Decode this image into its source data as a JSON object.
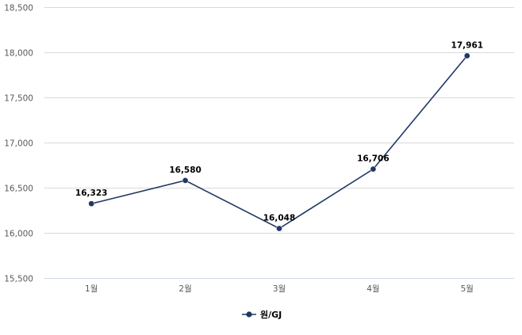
{
  "chart_data": {
    "type": "line",
    "categories": [
      "1월",
      "2월",
      "3월",
      "4월",
      "5월"
    ],
    "series": [
      {
        "name": "원/GJ",
        "values": [
          16323,
          16580,
          16048,
          16706,
          17961
        ],
        "labels": [
          "16,323",
          "16,580",
          "16,048",
          "16,706",
          "17,961"
        ],
        "color": "#1f3864"
      }
    ],
    "ylim": [
      15500,
      18500
    ],
    "yticks": [
      15500,
      16000,
      16500,
      17000,
      17500,
      18000,
      18500
    ],
    "ytick_labels": [
      "15,500",
      "16,000",
      "16,500",
      "17,000",
      "17,500",
      "18,000",
      "18,500"
    ],
    "grid": true,
    "legend_position": "bottom",
    "colors": {
      "grid": "#d9d9d9",
      "axis": "#d0d8e8",
      "line": "#1f3864"
    }
  }
}
